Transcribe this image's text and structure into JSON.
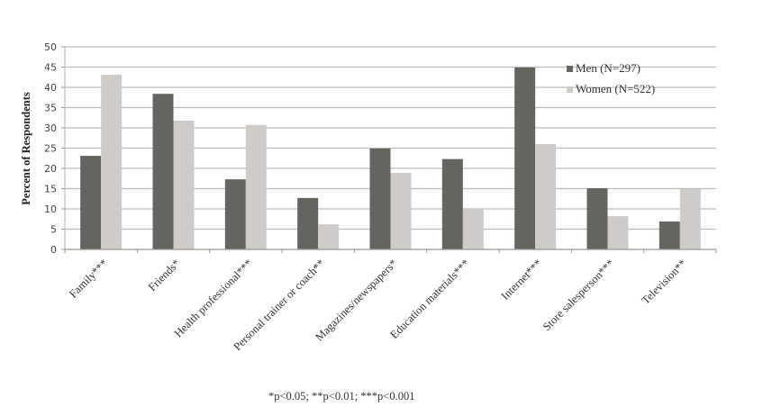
{
  "chart_data": {
    "type": "bar",
    "title": "",
    "xlabel": "",
    "ylabel": "Percent of Respondents",
    "ylim": [
      0,
      50
    ],
    "yticks": [
      0,
      5,
      10,
      15,
      20,
      25,
      30,
      35,
      40,
      45,
      50
    ],
    "grid": true,
    "legend_position": "upper right (inside plot)",
    "categories": [
      "Family***",
      "Friends*",
      "Health professional***",
      "Personal trainer or coach**",
      "Magazines/newspapers*",
      "Education materials***",
      "Internet***",
      "Store salesperson***",
      "Television**"
    ],
    "series": [
      {
        "name": "Men (N=297)",
        "color": "#65645f",
        "values": [
          23.1,
          38.4,
          17.3,
          12.7,
          24.9,
          22.3,
          44.9,
          15.1,
          6.9
        ]
      },
      {
        "name": "Women (N=522)",
        "color": "#cfccc8",
        "values": [
          43.1,
          31.8,
          30.7,
          6.2,
          18.9,
          10.0,
          26.0,
          8.2,
          14.9
        ]
      }
    ],
    "annotations": [
      "*p<0.05; **p<0.01; ***p<0.001"
    ]
  },
  "footnote": "*p<0.05; **p<0.01; ***p<0.001"
}
